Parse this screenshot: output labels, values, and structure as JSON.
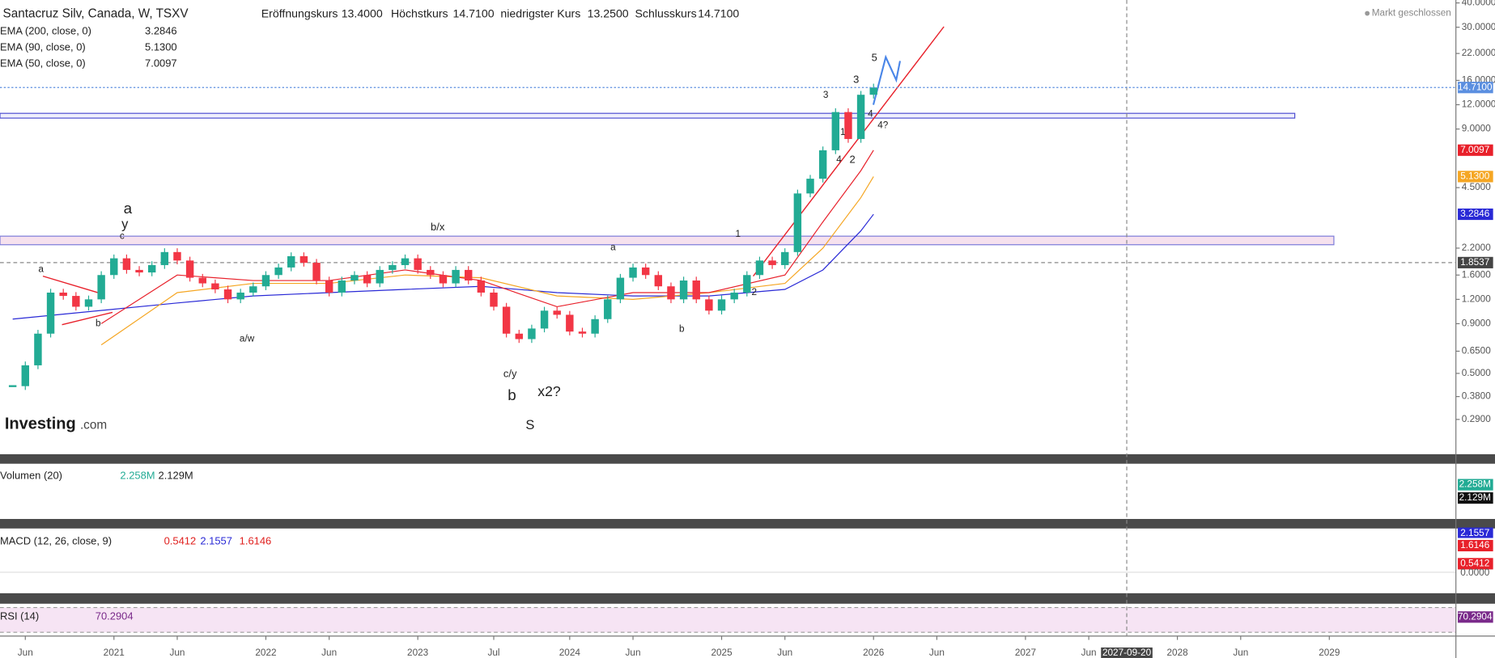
{
  "header": {
    "symbol": "Santacruz Silv, Canada, W, TSXV",
    "open_label": "Eröffnungskurs",
    "open": "13.4000",
    "high_label": "Höchstkurs",
    "high": "14.7100",
    "low_label": "niedrigster Kurs",
    "low": "13.2500",
    "close_label": "Schlusskurs",
    "close": "14.7100",
    "market_status": "Markt geschlossen"
  },
  "chart_data": {
    "type": "candlestick",
    "x": [
      "2020-05",
      "2020-06",
      "2020-07",
      "2020-08",
      "2020-09",
      "2020-10",
      "2020-11",
      "2020-12",
      "2021-01",
      "2021-02",
      "2021-03",
      "2021-04",
      "2021-05",
      "2021-06",
      "2021-07",
      "2021-08",
      "2021-09",
      "2021-10",
      "2021-11",
      "2021-12",
      "2022-01",
      "2022-02",
      "2022-03",
      "2022-04",
      "2022-05",
      "2022-06",
      "2022-07",
      "2022-08",
      "2022-09",
      "2022-10",
      "2022-11",
      "2022-12",
      "2023-01",
      "2023-02",
      "2023-03",
      "2023-04",
      "2023-05",
      "2023-06",
      "2023-07",
      "2023-08",
      "2023-09",
      "2023-10",
      "2023-11",
      "2023-12",
      "2024-01",
      "2024-02",
      "2024-03",
      "2024-04",
      "2024-05",
      "2024-06",
      "2024-07",
      "2024-08",
      "2024-09",
      "2024-10",
      "2024-11",
      "2024-12",
      "2025-01",
      "2025-02",
      "2025-03",
      "2025-04",
      "2025-05",
      "2025-06",
      "2025-07",
      "2025-08",
      "2025-09",
      "2025-10",
      "2025-11",
      "2025-12",
      "2026-01"
    ],
    "close": [
      0.43,
      0.55,
      0.8,
      1.3,
      1.25,
      1.1,
      1.2,
      1.6,
      1.95,
      1.7,
      1.65,
      1.8,
      2.1,
      1.9,
      1.55,
      1.45,
      1.35,
      1.2,
      1.3,
      1.4,
      1.6,
      1.75,
      2.0,
      1.85,
      1.5,
      1.3,
      1.5,
      1.6,
      1.45,
      1.7,
      1.8,
      1.95,
      1.7,
      1.6,
      1.45,
      1.7,
      1.5,
      1.3,
      1.1,
      0.8,
      0.75,
      0.85,
      1.05,
      1.0,
      0.82,
      0.8,
      0.95,
      1.2,
      1.55,
      1.75,
      1.6,
      1.4,
      1.2,
      1.5,
      1.2,
      1.05,
      1.2,
      1.3,
      1.6,
      1.9,
      1.8,
      2.1,
      4.2,
      5.0,
      7.0,
      11.0,
      8.0,
      13.5,
      14.71
    ],
    "up_color": "#22ab94",
    "down_color": "#f23645",
    "series": [
      {
        "name": "EMA (200, close, 0)",
        "last_label": "3.2846",
        "color": "#2929d6",
        "x": [
          "2020-05",
          "2021-06",
          "2021-12",
          "2022-06",
          "2022-12",
          "2023-06",
          "2023-12",
          "2024-06",
          "2024-12",
          "2025-06",
          "2025-09",
          "2025-12",
          "2026-01"
        ],
        "values": [
          0.95,
          1.15,
          1.25,
          1.3,
          1.35,
          1.4,
          1.3,
          1.25,
          1.25,
          1.35,
          1.7,
          2.7,
          3.2846
        ]
      },
      {
        "name": "EMA (90, close, 0)",
        "last_label": "5.1300",
        "color": "#f5a623",
        "x": [
          "2020-12",
          "2021-06",
          "2021-12",
          "2022-06",
          "2022-12",
          "2023-06",
          "2023-12",
          "2024-06",
          "2024-12",
          "2025-06",
          "2025-09",
          "2025-12",
          "2026-01"
        ],
        "values": [
          0.7,
          1.3,
          1.45,
          1.45,
          1.6,
          1.55,
          1.25,
          1.2,
          1.3,
          1.45,
          2.2,
          4.0,
          5.13
        ]
      },
      {
        "name": "EMA (50, close, 0)",
        "last_label": "7.0097",
        "color": "#e8202a",
        "x": [
          "2020-12",
          "2021-06",
          "2021-12",
          "2022-06",
          "2022-12",
          "2023-06",
          "2023-12",
          "2024-06",
          "2024-12",
          "2025-06",
          "2025-09",
          "2025-12",
          "2026-01"
        ],
        "values": [
          0.9,
          1.6,
          1.5,
          1.5,
          1.7,
          1.5,
          1.1,
          1.3,
          1.3,
          1.6,
          3.0,
          5.5,
          7.0097
        ]
      }
    ],
    "log_scale": true,
    "ylim": [
      0.22,
      41.4
    ],
    "yticks": [
      {
        "value": 40,
        "label": "40.0000"
      },
      {
        "value": 30,
        "label": "30.0000"
      },
      {
        "value": 22,
        "label": "22.0000"
      },
      {
        "value": 16,
        "label": "16.0000"
      },
      {
        "value": 12,
        "label": "12.0000"
      },
      {
        "value": 9,
        "label": "9.0000"
      },
      {
        "value": 4.5,
        "label": "4.5000"
      },
      {
        "value": 2.2,
        "label": "2.2000"
      },
      {
        "value": 1.6,
        "label": "1.6000"
      },
      {
        "value": 1.2,
        "label": "1.2000"
      },
      {
        "value": 0.9,
        "label": "0.9000"
      },
      {
        "value": 0.65,
        "label": "0.6500"
      },
      {
        "value": 0.5,
        "label": "0.5000"
      },
      {
        "value": 0.38,
        "label": "0.3800"
      },
      {
        "value": 0.29,
        "label": "0.2900"
      }
    ],
    "xlim": [
      "2020-04",
      "2029-11"
    ],
    "xticks": [
      {
        "value": "2020-06",
        "label": "Jun"
      },
      {
        "value": "2021-01",
        "label": "2021"
      },
      {
        "value": "2021-06",
        "label": "Jun"
      },
      {
        "value": "2022-01",
        "label": "2022"
      },
      {
        "value": "2022-06",
        "label": "Jun"
      },
      {
        "value": "2023-01",
        "label": "2023"
      },
      {
        "value": "2023-07",
        "label": "Jul"
      },
      {
        "value": "2024-01",
        "label": "2024"
      },
      {
        "value": "2024-06",
        "label": "Jun"
      },
      {
        "value": "2025-01",
        "label": "2025"
      },
      {
        "value": "2025-06",
        "label": "Jun"
      },
      {
        "value": "2026-01",
        "label": "2026"
      },
      {
        "value": "2026-06",
        "label": "Jun"
      },
      {
        "value": "2027-01",
        "label": "2027"
      },
      {
        "value": "2027-06",
        "label": "Jun"
      },
      {
        "value": "2028-01",
        "label": "2028"
      },
      {
        "value": "2028-06",
        "label": "Jun"
      },
      {
        "value": "2029-01",
        "label": "2029"
      }
    ],
    "last_price": {
      "value": 14.71,
      "label": "14.7100",
      "color": "#5b8fe0"
    },
    "crosshair": {
      "value": 1.8537,
      "label": "1.8537",
      "date": "2027-09",
      "date_label": "2027-09-20"
    }
  },
  "annotations": [
    {
      "text": "a",
      "color": "#e0201e"
    },
    {
      "text": "y",
      "color": "#111111"
    },
    {
      "text": "c",
      "color": "#f29b1d"
    },
    {
      "text": "a",
      "color": "#f29b1d"
    },
    {
      "text": "b",
      "color": "#f29b1d"
    },
    {
      "text": "a/w",
      "color": "#f29b1d"
    },
    {
      "text": "b/x",
      "color": "#f29b1d"
    },
    {
      "text": "c/y",
      "color": "#f29b1d"
    },
    {
      "text": "b",
      "color": "#e0201e"
    },
    {
      "text": "x2?",
      "color": "#111111"
    },
    {
      "text": "S",
      "color": "#9b30d9"
    },
    {
      "text": "a",
      "color": "#f29b1d"
    },
    {
      "text": "b",
      "color": "#f29b1d"
    },
    {
      "text": "1",
      "color": "#2fd12f"
    },
    {
      "text": "2",
      "color": "#2fd12f"
    },
    {
      "text": "3",
      "color": "#2fd12f"
    },
    {
      "text": "4",
      "color": "#2fd12f"
    },
    {
      "text": "3",
      "color": "#4a86e8"
    },
    {
      "text": "1",
      "color": "#4a86e8"
    },
    {
      "text": "2",
      "color": "#4a86e8"
    },
    {
      "text": "4",
      "color": "#4a86e8"
    },
    {
      "text": "4?",
      "color": "#2fd12f"
    },
    {
      "text": "5",
      "color": "#4a86e8"
    }
  ],
  "watermark": {
    "brand": "Investing",
    "suffix": ".com"
  },
  "volume_pane": {
    "title": "Volumen (20)",
    "value": "2.258M",
    "average": "2.129M"
  },
  "macd_pane": {
    "title": "MACD (12, 26, close, 9)",
    "histogram": "0.5412",
    "macd": "2.1557",
    "signal": "1.6146",
    "zero_tick": "0.0000"
  },
  "rsi_pane": {
    "title": "RSI (14)",
    "value": "70.2904"
  }
}
